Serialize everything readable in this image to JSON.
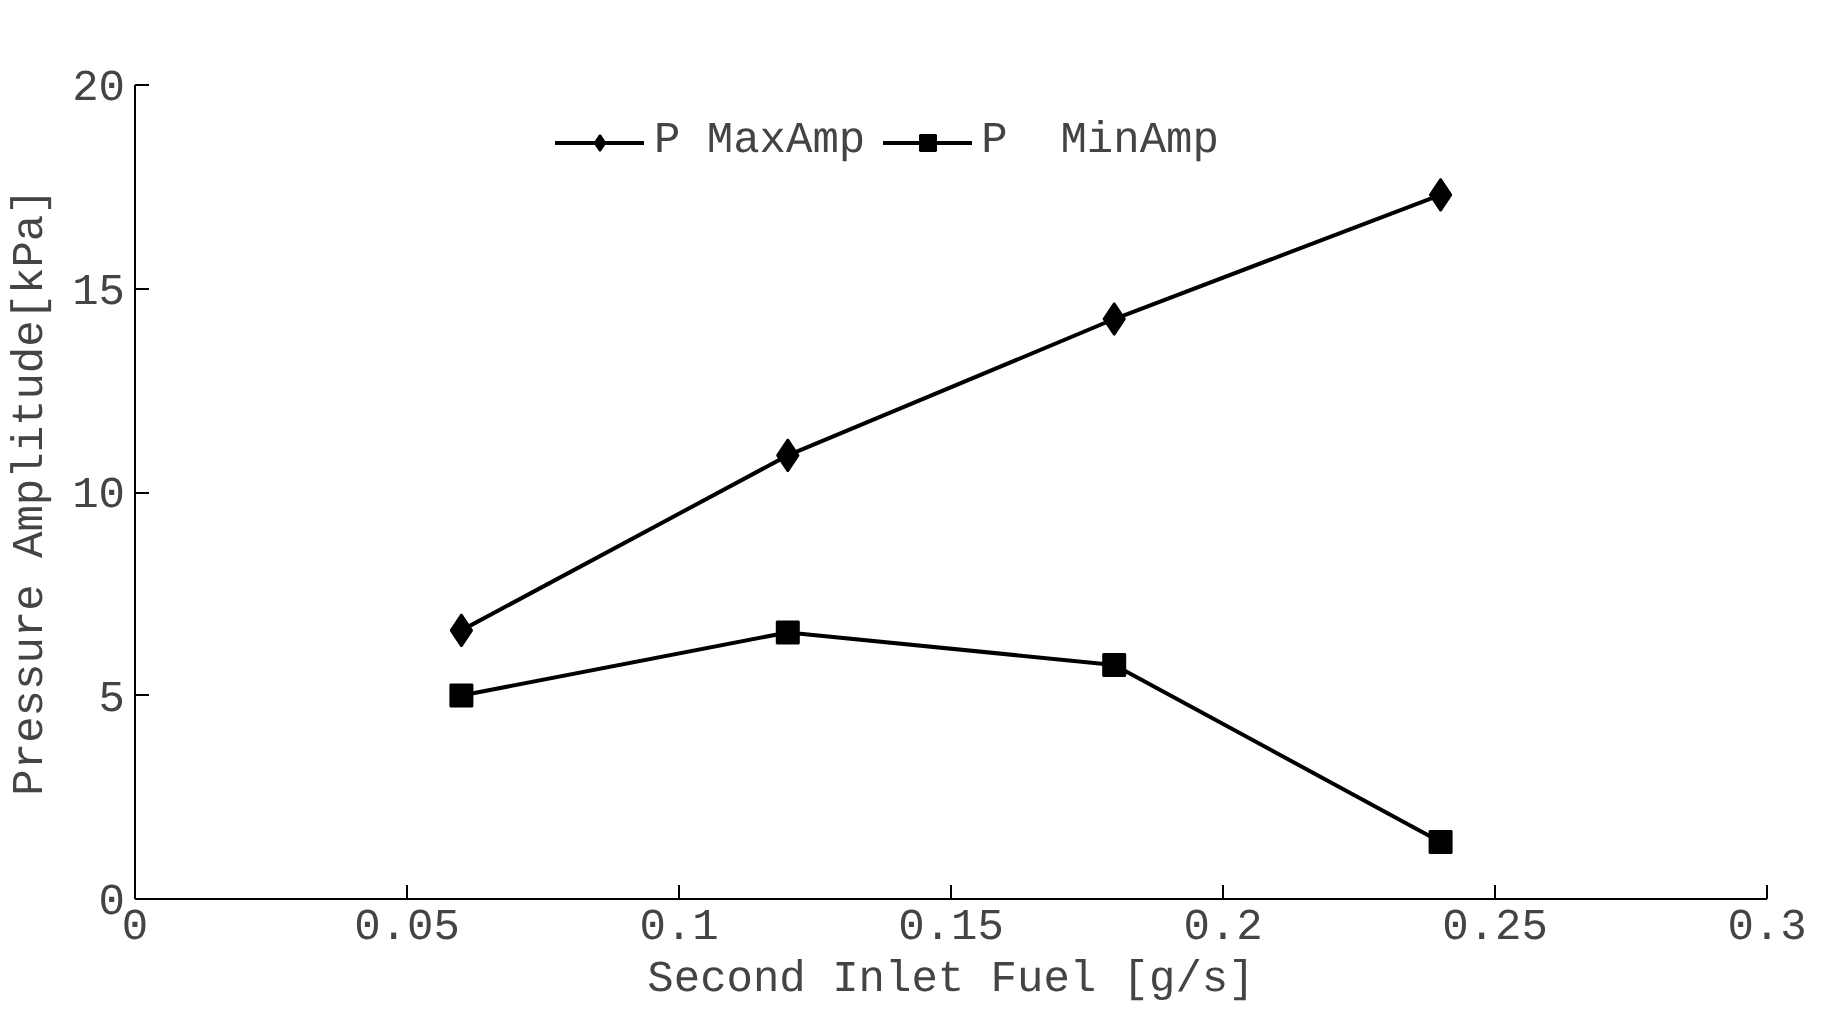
{
  "chart_data": {
    "type": "line",
    "xlabel": "Second Inlet Fuel [g/s]",
    "ylabel": "Pressure Amplitude[kPa]",
    "x": [
      0.06,
      0.12,
      0.18,
      0.24
    ],
    "series": [
      {
        "name": "P MaxAmp",
        "color": "#000000",
        "marker": "diamond",
        "values": [
          6.6,
          10.9,
          14.25,
          17.3
        ]
      },
      {
        "name": "P  MinAmp",
        "color": "#000000",
        "marker": "square",
        "values": [
          5.0,
          6.55,
          5.75,
          1.4
        ]
      }
    ],
    "xlim": [
      0,
      0.3
    ],
    "xticks": [
      0,
      {
        "value": 0.05,
        "label": "0.05"
      },
      {
        "value": 0.1,
        "label": "0.1"
      },
      {
        "value": 0.15,
        "label": "0.15"
      },
      {
        "value": 0.2,
        "label": "0.2"
      },
      {
        "value": 0.25,
        "label": "0.25"
      },
      {
        "value": 0.3,
        "label": "0.3"
      }
    ],
    "ylim": [
      0,
      20
    ],
    "yticks": [
      0,
      5,
      10,
      15,
      20
    ],
    "grid": false,
    "legend": "top",
    "line_style": "solid"
  }
}
